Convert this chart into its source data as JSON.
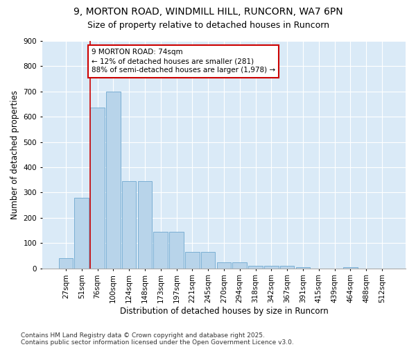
{
  "title_line1": "9, MORTON ROAD, WINDMILL HILL, RUNCORN, WA7 6PN",
  "title_line2": "Size of property relative to detached houses in Runcorn",
  "xlabel": "Distribution of detached houses by size in Runcorn",
  "ylabel": "Number of detached properties",
  "bar_color": "#b8d4ea",
  "bar_edge_color": "#7aafd4",
  "background_color": "#daeaf7",
  "grid_color": "#ffffff",
  "fig_background": "#ffffff",
  "categories": [
    "27sqm",
    "51sqm",
    "76sqm",
    "100sqm",
    "124sqm",
    "148sqm",
    "173sqm",
    "197sqm",
    "221sqm",
    "245sqm",
    "270sqm",
    "294sqm",
    "318sqm",
    "342sqm",
    "367sqm",
    "391sqm",
    "415sqm",
    "439sqm",
    "464sqm",
    "488sqm",
    "512sqm"
  ],
  "values": [
    40,
    280,
    635,
    700,
    345,
    345,
    145,
    145,
    65,
    65,
    25,
    25,
    10,
    10,
    10,
    5,
    0,
    0,
    5,
    0,
    0
  ],
  "ylim": [
    0,
    900
  ],
  "yticks": [
    0,
    100,
    200,
    300,
    400,
    500,
    600,
    700,
    800,
    900
  ],
  "property_line_index": 2,
  "annotation_line1": "9 MORTON ROAD: 74sqm",
  "annotation_line2": "← 12% of detached houses are smaller (281)",
  "annotation_line3": "88% of semi-detached houses are larger (1,978) →",
  "annotation_box_color": "#ffffff",
  "annotation_border_color": "#cc0000",
  "footer_line1": "Contains HM Land Registry data © Crown copyright and database right 2025.",
  "footer_line2": "Contains public sector information licensed under the Open Government Licence v3.0.",
  "title_fontsize": 10,
  "subtitle_fontsize": 9,
  "axis_label_fontsize": 8.5,
  "tick_fontsize": 7.5,
  "annotation_fontsize": 7.5,
  "footer_fontsize": 6.5
}
